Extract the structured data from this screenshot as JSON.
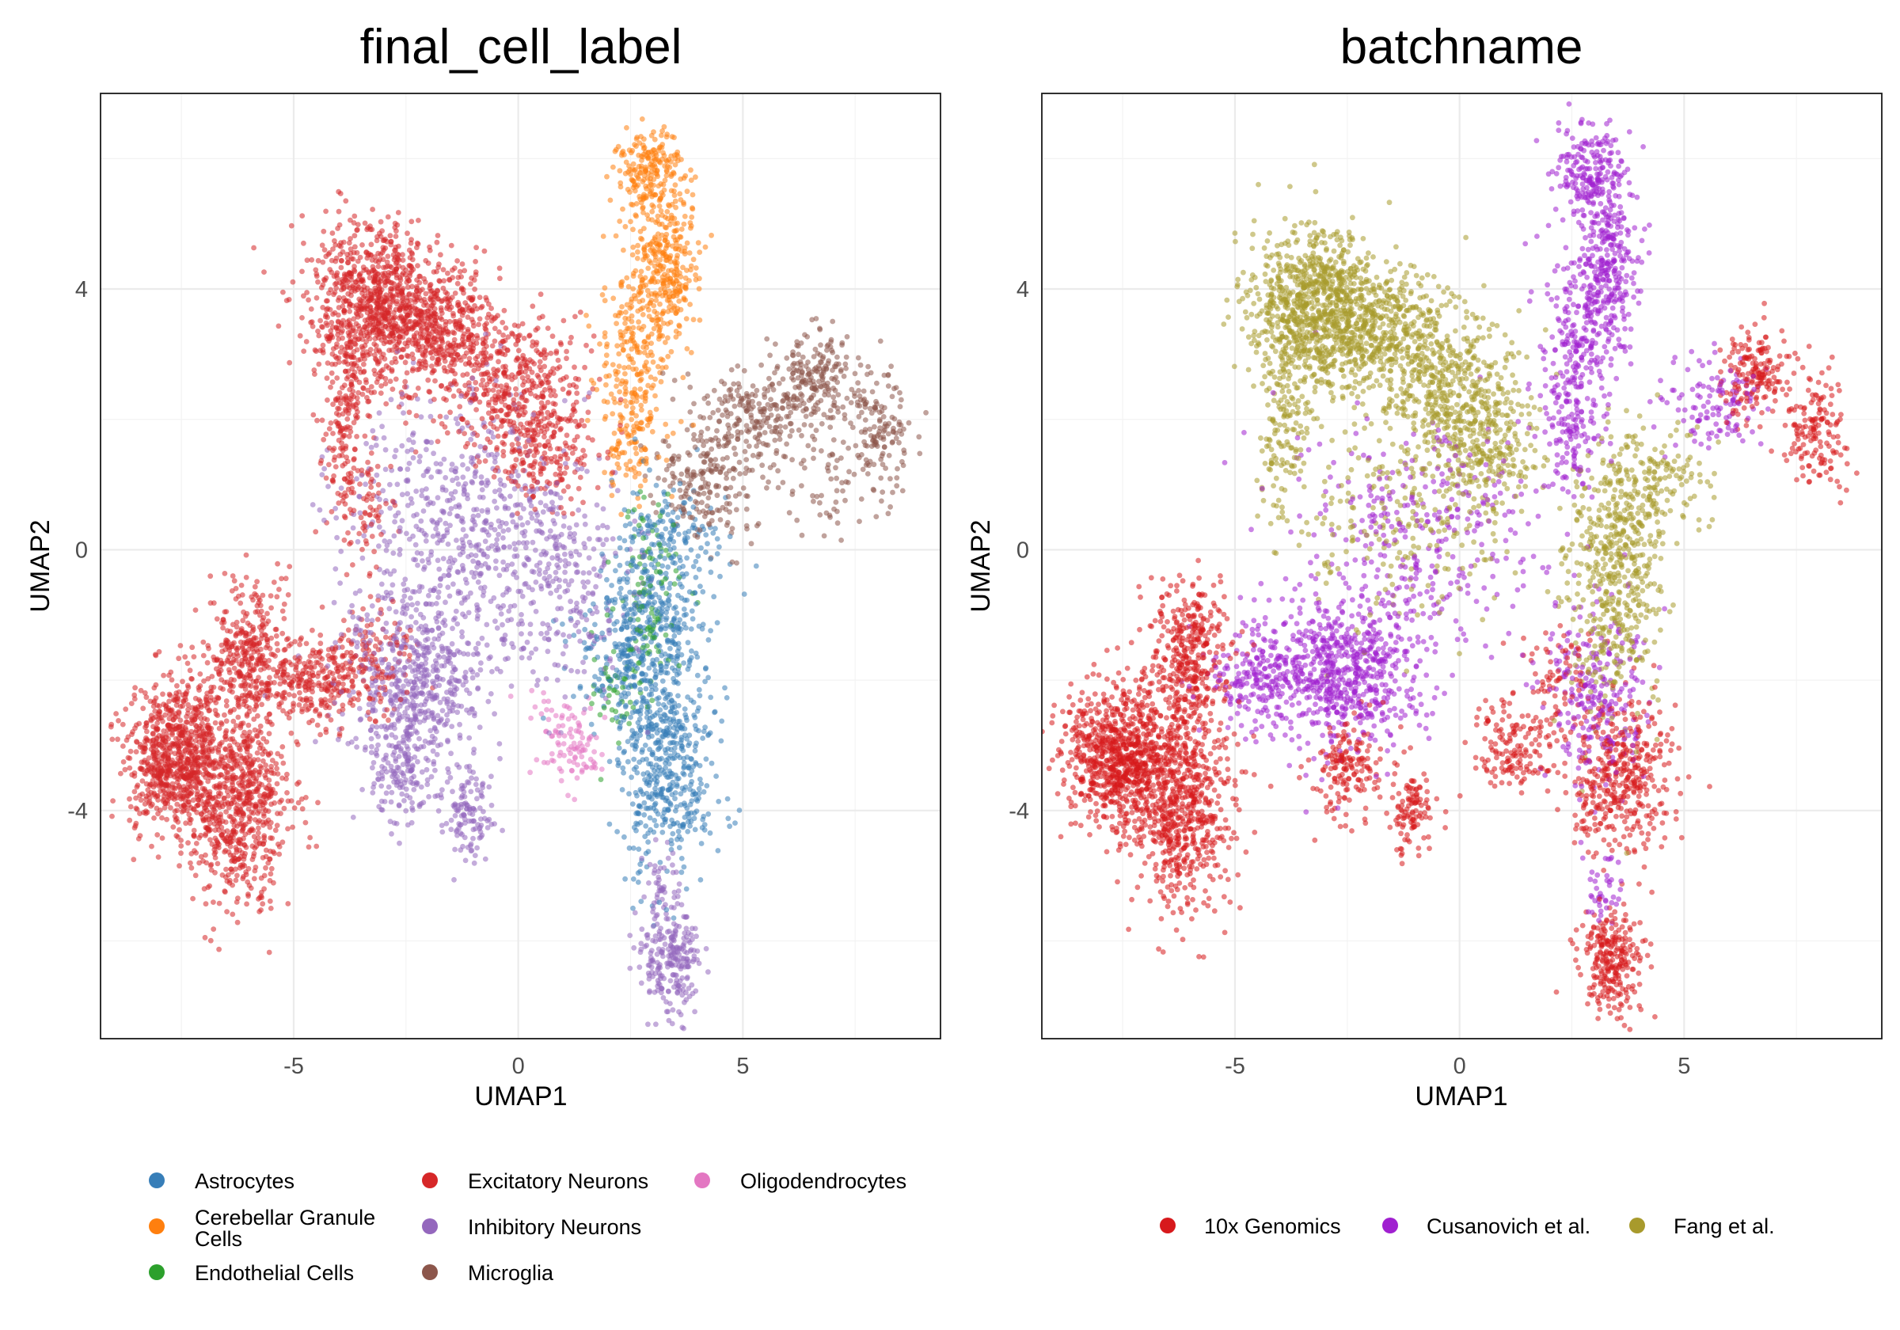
{
  "chart_data": [
    {
      "type": "scatter",
      "title": "final_cell_label",
      "xlabel": "UMAP1",
      "ylabel": "UMAP2",
      "xlim": [
        -9.3,
        9.4
      ],
      "ylim": [
        -7.5,
        7.0
      ],
      "x_ticks": [
        -5,
        0,
        5
      ],
      "x_tick_labels": [
        "-5",
        "0",
        "5"
      ],
      "y_ticks": [
        -4,
        0,
        4
      ],
      "y_tick_labels": [
        "-4",
        "0",
        "4"
      ],
      "grid": true,
      "legend_position": "bottom",
      "legend_columns": [
        [
          "Astrocytes",
          "Cerebellar Granule Cells",
          "Endothelial Cells"
        ],
        [
          "Excitatory Neurons",
          "Inhibitory Neurons",
          "Microglia"
        ],
        [
          "Oligodendrocytes"
        ]
      ],
      "series": [
        {
          "name": "Astrocytes",
          "color": "#377EB8",
          "clusters": [
            {
              "x": 3.3,
              "y": -3.2,
              "sx": 0.55,
              "sy": 0.9,
              "n": 520
            },
            {
              "x": 3.0,
              "y": -1.0,
              "sx": 0.5,
              "sy": 0.8,
              "n": 320
            },
            {
              "x": 2.3,
              "y": -1.6,
              "sx": 0.6,
              "sy": 0.6,
              "n": 140
            },
            {
              "x": 3.6,
              "y": 0.2,
              "sx": 0.6,
              "sy": 0.4,
              "n": 90
            }
          ]
        },
        {
          "name": "Cerebellar Granule Cells",
          "color": "#FF7F0E",
          "clusters": [
            {
              "x": 2.9,
              "y": 5.8,
              "sx": 0.4,
              "sy": 0.35,
              "n": 200
            },
            {
              "x": 3.3,
              "y": 4.4,
              "sx": 0.35,
              "sy": 0.65,
              "n": 300
            },
            {
              "x": 2.6,
              "y": 3.0,
              "sx": 0.45,
              "sy": 0.8,
              "n": 230
            },
            {
              "x": 2.5,
              "y": 1.7,
              "sx": 0.3,
              "sy": 0.45,
              "n": 80
            }
          ]
        },
        {
          "name": "Endothelial Cells",
          "color": "#2CA02C",
          "clusters": [
            {
              "x": 2.9,
              "y": -0.8,
              "sx": 0.35,
              "sy": 0.75,
              "n": 110
            },
            {
              "x": 2.2,
              "y": -2.2,
              "sx": 0.3,
              "sy": 0.4,
              "n": 45
            }
          ]
        },
        {
          "name": "Excitatory Neurons",
          "color": "#D62728",
          "clusters": [
            {
              "x": -7.6,
              "y": -3.2,
              "sx": 0.55,
              "sy": 0.55,
              "n": 800
            },
            {
              "x": -6.2,
              "y": -3.9,
              "sx": 0.55,
              "sy": 0.8,
              "n": 700
            },
            {
              "x": -6.0,
              "y": -1.6,
              "sx": 0.45,
              "sy": 0.55,
              "n": 350
            },
            {
              "x": -4.5,
              "y": -2.0,
              "sx": 0.6,
              "sy": 0.35,
              "n": 260
            },
            {
              "x": -3.3,
              "y": -1.6,
              "sx": 0.5,
              "sy": 0.4,
              "n": 120
            },
            {
              "x": -3.2,
              "y": 3.7,
              "sx": 0.75,
              "sy": 0.6,
              "n": 850
            },
            {
              "x": -1.8,
              "y": 3.4,
              "sx": 0.7,
              "sy": 0.5,
              "n": 400
            },
            {
              "x": -0.3,
              "y": 2.6,
              "sx": 0.75,
              "sy": 0.55,
              "n": 380
            },
            {
              "x": 0.6,
              "y": 1.6,
              "sx": 0.6,
              "sy": 0.5,
              "n": 250
            },
            {
              "x": -3.9,
              "y": 2.0,
              "sx": 0.25,
              "sy": 0.8,
              "n": 160
            },
            {
              "x": -3.4,
              "y": 0.7,
              "sx": 0.25,
              "sy": 0.5,
              "n": 70
            }
          ]
        },
        {
          "name": "Inhibitory Neurons",
          "color": "#9467BD",
          "clusters": [
            {
              "x": -2.3,
              "y": -2.0,
              "sx": 0.8,
              "sy": 0.6,
              "n": 520
            },
            {
              "x": -2.5,
              "y": -3.4,
              "sx": 0.4,
              "sy": 0.4,
              "n": 160
            },
            {
              "x": -1.1,
              "y": -4.0,
              "sx": 0.25,
              "sy": 0.35,
              "n": 120
            },
            {
              "x": 3.4,
              "y": -6.3,
              "sx": 0.35,
              "sy": 0.4,
              "n": 230
            },
            {
              "x": 3.2,
              "y": -5.2,
              "sx": 0.2,
              "sy": 0.35,
              "n": 45
            },
            {
              "x": -1.3,
              "y": 0.4,
              "sx": 1.3,
              "sy": 1.0,
              "n": 600
            },
            {
              "x": 0.9,
              "y": -0.6,
              "sx": 0.9,
              "sy": 0.8,
              "n": 260
            }
          ]
        },
        {
          "name": "Microglia",
          "color": "#8C564B",
          "clusters": [
            {
              "x": 6.6,
              "y": 2.7,
              "sx": 0.4,
              "sy": 0.35,
              "n": 170
            },
            {
              "x": 8.0,
              "y": 1.9,
              "sx": 0.35,
              "sy": 0.45,
              "n": 150
            },
            {
              "x": 5.3,
              "y": 2.1,
              "sx": 0.75,
              "sy": 0.35,
              "n": 220
            },
            {
              "x": 4.2,
              "y": 1.1,
              "sx": 0.6,
              "sy": 0.45,
              "n": 200
            },
            {
              "x": 6.9,
              "y": 1.0,
              "sx": 0.5,
              "sy": 0.5,
              "n": 60
            }
          ]
        },
        {
          "name": "Oligodendrocytes",
          "color": "#E377C2",
          "clusters": [
            {
              "x": 1.3,
              "y": -3.1,
              "sx": 0.35,
              "sy": 0.3,
              "n": 80
            },
            {
              "x": 0.7,
              "y": -2.6,
              "sx": 0.3,
              "sy": 0.3,
              "n": 25
            }
          ]
        }
      ]
    },
    {
      "type": "scatter",
      "title": "batchname",
      "xlabel": "UMAP1",
      "ylabel": "UMAP2",
      "xlim": [
        -9.3,
        9.4
      ],
      "ylim": [
        -7.5,
        7.0
      ],
      "x_ticks": [
        -5,
        0,
        5
      ],
      "x_tick_labels": [
        "-5",
        "0",
        "5"
      ],
      "y_ticks": [
        -4,
        0,
        4
      ],
      "y_tick_labels": [
        "-4",
        "0",
        "4"
      ],
      "grid": true,
      "legend_position": "bottom",
      "legend_columns": [
        [
          "10x Genomics"
        ],
        [
          "Cusanovich et al."
        ],
        [
          "Fang et al."
        ]
      ],
      "series": [
        {
          "name": "10x Genomics",
          "color": "#D7191C",
          "clusters": [
            {
              "x": -7.6,
              "y": -3.2,
              "sx": 0.55,
              "sy": 0.55,
              "n": 800
            },
            {
              "x": -6.2,
              "y": -3.9,
              "sx": 0.55,
              "sy": 0.8,
              "n": 700
            },
            {
              "x": -6.0,
              "y": -1.6,
              "sx": 0.45,
              "sy": 0.55,
              "n": 350
            },
            {
              "x": -2.5,
              "y": -3.4,
              "sx": 0.4,
              "sy": 0.4,
              "n": 160
            },
            {
              "x": -1.1,
              "y": -4.0,
              "sx": 0.25,
              "sy": 0.35,
              "n": 110
            },
            {
              "x": 3.4,
              "y": -6.3,
              "sx": 0.35,
              "sy": 0.4,
              "n": 260
            },
            {
              "x": 3.6,
              "y": -3.5,
              "sx": 0.55,
              "sy": 0.55,
              "n": 400
            },
            {
              "x": 1.2,
              "y": -3.0,
              "sx": 0.45,
              "sy": 0.4,
              "n": 150
            },
            {
              "x": 6.6,
              "y": 2.7,
              "sx": 0.4,
              "sy": 0.35,
              "n": 170
            },
            {
              "x": 8.0,
              "y": 1.9,
              "sx": 0.35,
              "sy": 0.45,
              "n": 150
            },
            {
              "x": 2.2,
              "y": -1.9,
              "sx": 0.5,
              "sy": 0.45,
              "n": 80
            }
          ]
        },
        {
          "name": "Cusanovich et al.",
          "color": "#A020D0",
          "clusters": [
            {
              "x": 2.9,
              "y": 5.8,
              "sx": 0.4,
              "sy": 0.35,
              "n": 200
            },
            {
              "x": 3.3,
              "y": 4.4,
              "sx": 0.35,
              "sy": 0.65,
              "n": 300
            },
            {
              "x": 2.6,
              "y": 3.0,
              "sx": 0.45,
              "sy": 0.8,
              "n": 230
            },
            {
              "x": 2.5,
              "y": 1.7,
              "sx": 0.3,
              "sy": 0.45,
              "n": 80
            },
            {
              "x": -2.6,
              "y": -1.9,
              "sx": 0.9,
              "sy": 0.55,
              "n": 650
            },
            {
              "x": -4.5,
              "y": -2.0,
              "sx": 0.6,
              "sy": 0.35,
              "n": 180
            },
            {
              "x": 3.0,
              "y": -2.3,
              "sx": 0.6,
              "sy": 0.8,
              "n": 260
            },
            {
              "x": 5.7,
              "y": 2.2,
              "sx": 0.6,
              "sy": 0.4,
              "n": 120
            },
            {
              "x": -1.0,
              "y": 0.2,
              "sx": 1.4,
              "sy": 1.0,
              "n": 350
            },
            {
              "x": 3.2,
              "y": -5.2,
              "sx": 0.2,
              "sy": 0.35,
              "n": 40
            }
          ]
        },
        {
          "name": "Fang et al.",
          "color": "#A89A2C",
          "clusters": [
            {
              "x": -3.2,
              "y": 3.7,
              "sx": 0.75,
              "sy": 0.6,
              "n": 850
            },
            {
              "x": -1.8,
              "y": 3.4,
              "sx": 0.7,
              "sy": 0.5,
              "n": 400
            },
            {
              "x": -0.3,
              "y": 2.6,
              "sx": 0.75,
              "sy": 0.55,
              "n": 380
            },
            {
              "x": 0.6,
              "y": 1.6,
              "sx": 0.6,
              "sy": 0.5,
              "n": 250
            },
            {
              "x": -3.9,
              "y": 2.0,
              "sx": 0.3,
              "sy": 0.8,
              "n": 160
            },
            {
              "x": 4.2,
              "y": 1.1,
              "sx": 0.6,
              "sy": 0.45,
              "n": 180
            },
            {
              "x": 3.4,
              "y": -0.8,
              "sx": 0.5,
              "sy": 0.9,
              "n": 350
            },
            {
              "x": 3.6,
              "y": 0.3,
              "sx": 0.6,
              "sy": 0.4,
              "n": 120
            },
            {
              "x": -1.0,
              "y": 0.6,
              "sx": 1.2,
              "sy": 0.9,
              "n": 250
            }
          ]
        }
      ]
    }
  ]
}
